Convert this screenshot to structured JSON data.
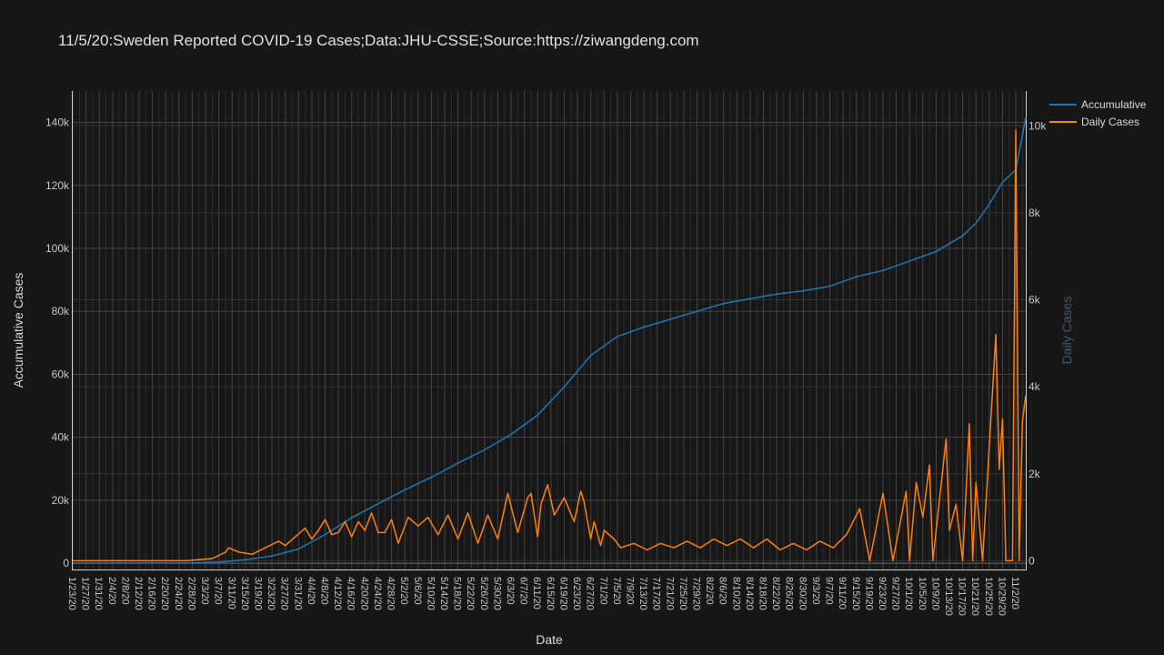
{
  "colors": {
    "background": "#171717",
    "accumulative": "#1f77b4",
    "daily": "#ff7f0e",
    "text": "#d9d9d9",
    "tick_text": "#c8c8c8",
    "grid": "#444444",
    "y2_label": "#3e5876"
  },
  "chart_data": {
    "type": "line",
    "title": "11/5/20:Sweden Reported COVID-19 Cases;Data:JHU-CSSE;Source:https://ziwangdeng.com",
    "xlabel": "Date",
    "ylabel": "Accumulative Cases",
    "y2label": "Daily Cases",
    "x_start": "1/23/20",
    "x_end": "11/5/20",
    "x_tick_labels": [
      "1/23/20",
      "1/27/20",
      "1/31/20",
      "2/4/20",
      "2/8/20",
      "2/12/20",
      "2/16/20",
      "2/20/20",
      "2/24/20",
      "2/28/20",
      "3/3/20",
      "3/7/20",
      "3/11/20",
      "3/15/20",
      "3/19/20",
      "3/23/20",
      "3/27/20",
      "3/31/20",
      "4/4/20",
      "4/8/20",
      "4/12/20",
      "4/16/20",
      "4/20/20",
      "4/24/20",
      "4/28/20",
      "5/2/20",
      "5/6/20",
      "5/10/20",
      "5/14/20",
      "5/18/20",
      "5/22/20",
      "5/26/20",
      "5/30/20",
      "6/3/20",
      "6/7/20",
      "6/11/20",
      "6/15/20",
      "6/19/20",
      "6/23/20",
      "6/27/20",
      "7/1/20",
      "7/5/20",
      "7/9/20",
      "7/13/20",
      "7/17/20",
      "7/21/20",
      "7/25/20",
      "7/29/20",
      "8/2/20",
      "8/6/20",
      "8/10/20",
      "8/14/20",
      "8/18/20",
      "8/22/20",
      "8/26/20",
      "8/30/20",
      "9/3/20",
      "9/7/20",
      "9/11/20",
      "9/15/20",
      "9/19/20",
      "9/23/20",
      "9/27/20",
      "10/1/20",
      "10/5/20",
      "10/9/20",
      "10/13/20",
      "10/17/20",
      "10/21/20",
      "10/25/20",
      "10/29/20",
      "11/2/20"
    ],
    "ylim": [
      -2000,
      150000
    ],
    "yticks": [
      0,
      20000,
      40000,
      60000,
      80000,
      100000,
      120000,
      140000
    ],
    "ytick_labels": [
      "0",
      "20k",
      "40k",
      "60k",
      "80k",
      "100k",
      "120k",
      "140k"
    ],
    "y2lim": [
      -200,
      10800
    ],
    "y2ticks": [
      0,
      2000,
      4000,
      6000,
      8000,
      10000
    ],
    "y2tick_labels": [
      "0",
      "2k",
      "4k",
      "6k",
      "8k",
      "10k"
    ],
    "grid": true,
    "legend": "top-right",
    "series": [
      {
        "name": "Accumulative",
        "axis": "y",
        "x": [
          "1/23/20",
          "2/26/20",
          "3/7/20",
          "3/15/20",
          "3/23/20",
          "3/31/20",
          "4/8/20",
          "4/16/20",
          "4/24/20",
          "5/2/20",
          "5/10/20",
          "5/18/20",
          "5/26/20",
          "6/3/20",
          "6/11/20",
          "6/19/20",
          "6/27/20",
          "7/5/20",
          "7/13/20",
          "7/21/20",
          "7/29/20",
          "8/6/20",
          "8/14/20",
          "8/22/20",
          "8/30/20",
          "9/7/20",
          "9/15/20",
          "9/23/20",
          "10/1/20",
          "10/9/20",
          "10/13/20",
          "10/17/20",
          "10/21/20",
          "10/25/20",
          "10/29/20",
          "11/2/20",
          "11/5/20"
        ],
        "values": [
          0,
          10,
          300,
          1100,
          2300,
          4500,
          9100,
          14400,
          18900,
          23300,
          27300,
          31800,
          36000,
          40900,
          47000,
          56000,
          66000,
          72000,
          75000,
          77500,
          80000,
          82500,
          84000,
          85500,
          86500,
          88000,
          91000,
          93000,
          96000,
          99000,
          101500,
          104000,
          108000,
          114000,
          121000,
          125000,
          141500
        ]
      },
      {
        "name": "Daily Cases",
        "axis": "y2",
        "x": [
          "1/23/20",
          "2/26/20",
          "3/5/20",
          "3/9/20",
          "3/10/20",
          "3/13/20",
          "3/17/20",
          "3/21/20",
          "3/25/20",
          "3/27/20",
          "3/30/20",
          "4/2/20",
          "4/4/20",
          "4/6/20",
          "4/8/20",
          "4/10/20",
          "4/12/20",
          "4/14/20",
          "4/16/20",
          "4/18/20",
          "4/20/20",
          "4/22/20",
          "4/24/20",
          "4/26/20",
          "4/28/20",
          "4/30/20",
          "5/3/20",
          "5/6/20",
          "5/9/20",
          "5/12/20",
          "5/15/20",
          "5/18/20",
          "5/21/20",
          "5/24/20",
          "5/27/20",
          "5/30/20",
          "6/2/20",
          "6/5/20",
          "6/8/20",
          "6/9/20",
          "6/11/20",
          "6/12/20",
          "6/14/20",
          "6/16/20",
          "6/19/20",
          "6/22/20",
          "6/24/20",
          "6/25/20",
          "6/27/20",
          "6/28/20",
          "6/30/20",
          "7/1/20",
          "7/4/20",
          "7/6/20",
          "7/10/20",
          "7/14/20",
          "7/18/20",
          "7/22/20",
          "7/26/20",
          "7/30/20",
          "8/3/20",
          "8/7/20",
          "8/11/20",
          "8/15/20",
          "8/19/20",
          "8/23/20",
          "8/27/20",
          "8/31/20",
          "9/4/20",
          "9/8/20",
          "9/12/20",
          "9/16/20",
          "9/19/20",
          "9/23/20",
          "9/26/20",
          "9/30/20",
          "10/1/20",
          "10/3/20",
          "10/5/20",
          "10/7/20",
          "10/8/20",
          "10/12/20",
          "10/13/20",
          "10/15/20",
          "10/17/20",
          "10/19/20",
          "10/20/20",
          "10/21/20",
          "10/23/20",
          "10/27/20",
          "10/28/20",
          "10/29/20",
          "10/30/20",
          "11/1/20",
          "11/2/20",
          "11/3/20",
          "11/4/20",
          "11/5/20"
        ],
        "values": [
          0,
          0,
          50,
          200,
          300,
          200,
          150,
          300,
          450,
          350,
          550,
          750,
          500,
          700,
          950,
          600,
          650,
          900,
          550,
          900,
          700,
          1100,
          650,
          650,
          950,
          400,
          1000,
          800,
          1000,
          600,
          1050,
          500,
          1100,
          400,
          1050,
          500,
          1550,
          650,
          1450,
          1550,
          550,
          1300,
          1750,
          1050,
          1450,
          900,
          1600,
          1350,
          500,
          900,
          350,
          700,
          500,
          300,
          400,
          250,
          400,
          300,
          450,
          300,
          500,
          350,
          500,
          300,
          500,
          250,
          400,
          250,
          450,
          300,
          600,
          1200,
          0,
          1550,
          0,
          1600,
          0,
          1800,
          1000,
          2200,
          0,
          2800,
          700,
          1300,
          0,
          3150,
          0,
          1800,
          0,
          5200,
          2100,
          3250,
          0,
          0,
          9900,
          0,
          3200,
          3800
        ]
      }
    ]
  }
}
